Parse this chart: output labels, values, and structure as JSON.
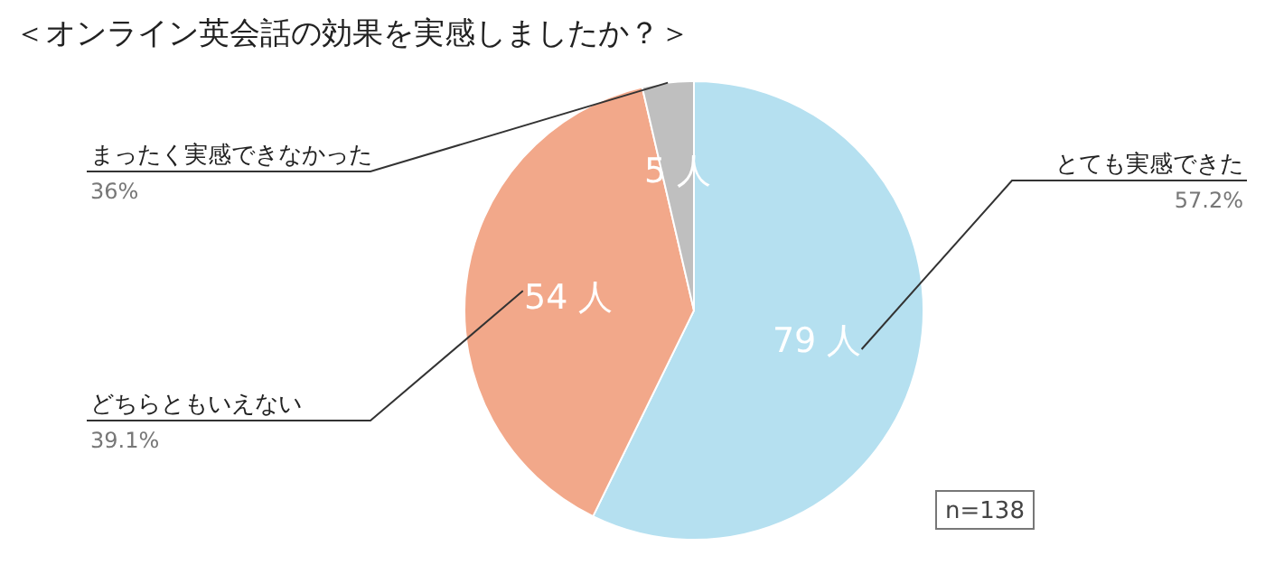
{
  "chart_data": {
    "type": "pie",
    "title": "＜オンライン英会話の効果を実感しましたか？＞",
    "categories": [
      "とても実感できた",
      "どちらともいえない",
      "まったく実感できなかった"
    ],
    "values": [
      79,
      54,
      5
    ],
    "colors": [
      "#b5e0f0",
      "#f2a88a",
      "#bfbfbf"
    ],
    "value_labels": [
      "79 人",
      "54 人",
      "5 人"
    ],
    "annotations": [
      "57.2%",
      "39.1%",
      "36%",
      "n=138"
    ]
  }
}
